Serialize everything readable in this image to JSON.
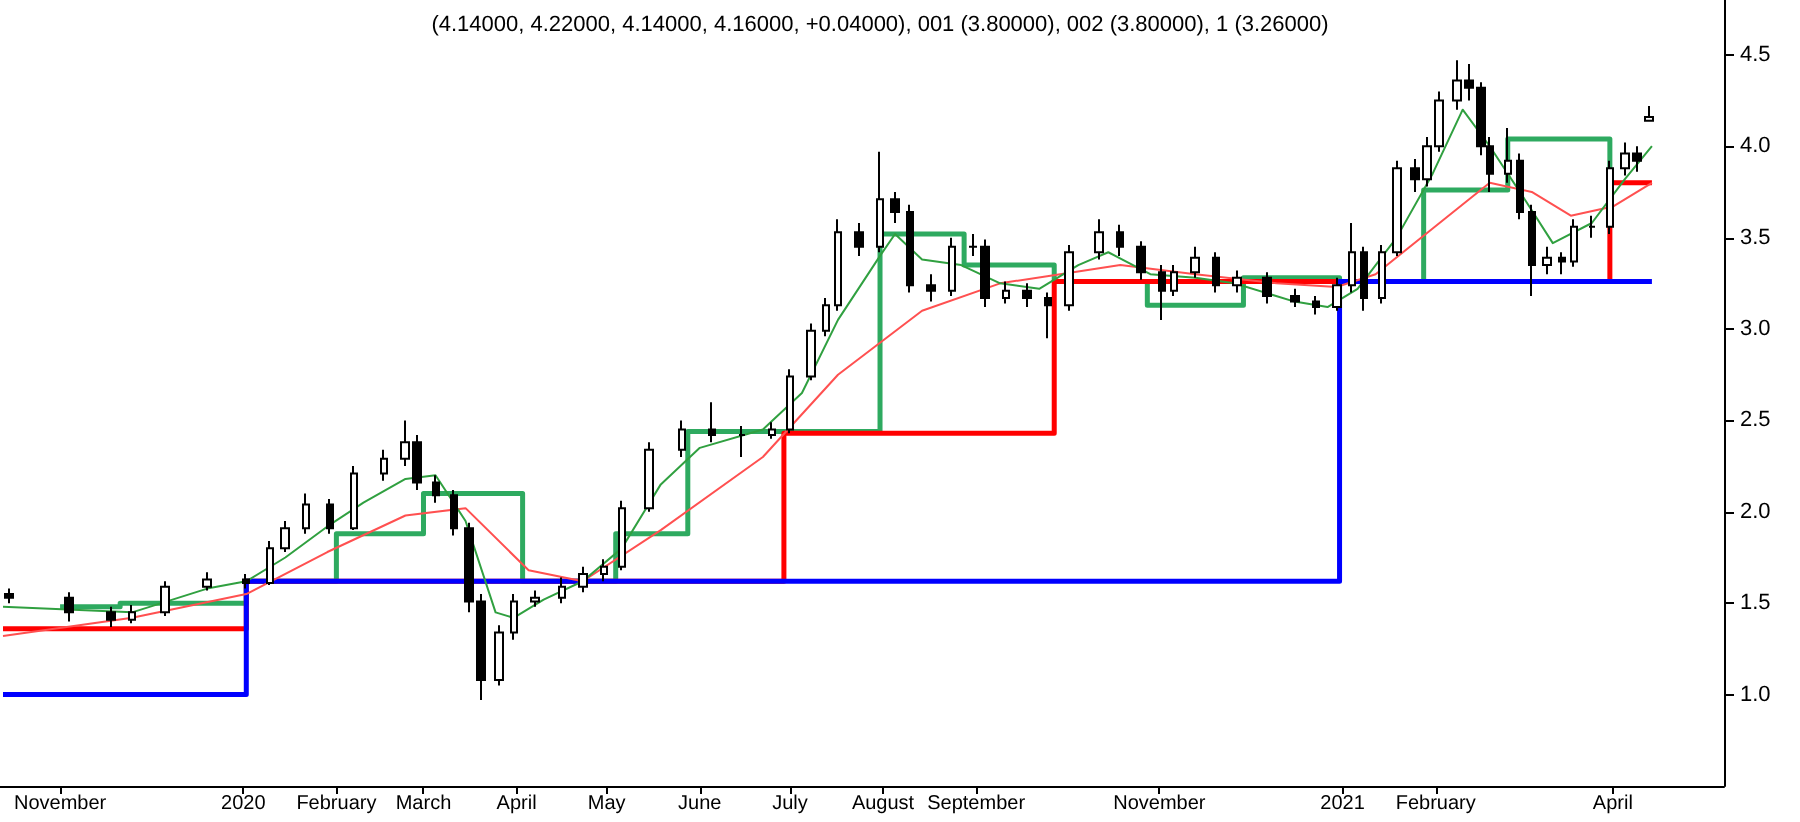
{
  "chart_data": {
    "type": "candlestick",
    "title": "(4.14000, 4.22000, 4.14000, 4.16000, +0.04000), 001 (3.80000), 002 (3.80000), 1 (3.26000)",
    "xlim": [
      "2019-10-12",
      "2021-05-08"
    ],
    "xticks": [
      {
        "value": "2019-11-01",
        "label": "November"
      },
      {
        "value": "2020-01-01",
        "label": "2020"
      },
      {
        "value": "2020-02-01",
        "label": "February"
      },
      {
        "value": "2020-03-01",
        "label": "March"
      },
      {
        "value": "2020-04-01",
        "label": "April"
      },
      {
        "value": "2020-05-01",
        "label": "May"
      },
      {
        "value": "2020-06-01",
        "label": "June"
      },
      {
        "value": "2020-07-01",
        "label": "July"
      },
      {
        "value": "2020-08-01",
        "label": "August"
      },
      {
        "value": "2020-09-01",
        "label": "September"
      },
      {
        "value": "2020-11-01",
        "label": "November"
      },
      {
        "value": "2021-01-01",
        "label": "2021"
      },
      {
        "value": "2021-02-01",
        "label": "February"
      },
      {
        "value": "2021-04-01",
        "label": "April"
      }
    ],
    "ylim": [
      0.5,
      4.8
    ],
    "yticks": [
      {
        "value": 1,
        "label": "1.0"
      },
      {
        "value": 1.5,
        "label": "1.5"
      },
      {
        "value": 2,
        "label": "2.0"
      },
      {
        "value": 2.5,
        "label": "2.5"
      },
      {
        "value": 3,
        "label": "3.0"
      },
      {
        "value": 3.5,
        "label": "3.5"
      },
      {
        "value": 4,
        "label": "4.0"
      },
      {
        "value": 4.5,
        "label": "4.5"
      }
    ],
    "grid": false,
    "marker": "none",
    "series": [
      {
        "type": "step",
        "color": "#0000ff",
        "x": [
          "2019-10-13",
          "2020-01-02",
          "2020-12-31",
          "2021-04-14"
        ],
        "values": [
          1.0,
          1.62,
          3.26,
          3.26
        ]
      },
      {
        "type": "step",
        "color": "#ff0000",
        "x": [
          "2019-10-13",
          "2020-01-02",
          "2020-06-29",
          "2020-09-27",
          "2021-03-31",
          "2021-04-14"
        ],
        "values": [
          1.36,
          1.62,
          2.43,
          3.26,
          3.8,
          3.8
        ]
      },
      {
        "type": "step",
        "color": "#2eaa60",
        "x": [
          "2019-11-01",
          "2019-11-21",
          "2020-01-02",
          "2020-02-01",
          "2020-03-01",
          "2020-04-03",
          "2020-05-04",
          "2020-05-28",
          "2020-07-31",
          "2020-08-28",
          "2020-09-27",
          "2020-10-28",
          "2020-11-29",
          "2020-12-31",
          "2021-01-28",
          "2021-02-25",
          "2021-03-31"
        ],
        "values": [
          1.48,
          1.5,
          1.62,
          1.88,
          2.1,
          1.62,
          1.88,
          2.44,
          3.52,
          3.35,
          3.26,
          3.13,
          3.28,
          3.26,
          3.76,
          4.04,
          3.8
        ]
      },
      {
        "type": "line",
        "color": "#ff5050",
        "x": [
          "2019-10-13",
          "2019-11-25",
          "2020-01-02",
          "2020-01-29",
          "2020-02-24",
          "2020-03-15",
          "2020-04-05",
          "2020-04-23",
          "2020-05-19",
          "2020-06-22",
          "2020-07-17",
          "2020-08-14",
          "2020-09-09",
          "2020-09-29",
          "2020-10-19",
          "2020-11-13",
          "2020-12-10",
          "2020-12-30",
          "2021-01-12",
          "2021-01-31",
          "2021-02-19",
          "2021-03-05",
          "2021-03-18",
          "2021-04-01",
          "2021-04-14"
        ],
        "values": [
          1.32,
          1.42,
          1.55,
          1.78,
          1.98,
          2.02,
          1.68,
          1.62,
          1.9,
          2.3,
          2.75,
          3.1,
          3.25,
          3.3,
          3.35,
          3.3,
          3.25,
          3.23,
          3.3,
          3.55,
          3.8,
          3.75,
          3.62,
          3.67,
          3.8
        ]
      },
      {
        "type": "line",
        "color": "#30a040",
        "x": [
          "2019-10-13",
          "2019-11-25",
          "2019-12-20",
          "2020-01-02",
          "2020-01-15",
          "2020-01-29",
          "2020-02-10",
          "2020-02-24",
          "2020-03-05",
          "2020-03-15",
          "2020-03-25",
          "2020-03-31",
          "2020-04-10",
          "2020-04-23",
          "2020-05-06",
          "2020-05-19",
          "2020-06-01",
          "2020-06-22",
          "2020-07-05",
          "2020-07-17",
          "2020-07-31",
          "2020-08-05",
          "2020-08-14",
          "2020-08-27",
          "2020-09-09",
          "2020-09-22",
          "2020-10-05",
          "2020-10-15",
          "2020-10-29",
          "2020-11-13",
          "2020-11-26",
          "2020-12-16",
          "2020-12-27",
          "2021-01-06",
          "2021-01-19",
          "2021-01-31",
          "2021-02-10",
          "2021-02-19",
          "2021-03-03",
          "2021-03-12",
          "2021-03-25",
          "2021-04-05",
          "2021-04-14"
        ],
        "values": [
          1.48,
          1.45,
          1.58,
          1.62,
          1.75,
          1.92,
          2.05,
          2.18,
          2.2,
          1.95,
          1.45,
          1.42,
          1.52,
          1.62,
          1.8,
          2.15,
          2.35,
          2.45,
          2.65,
          3.05,
          3.4,
          3.52,
          3.38,
          3.35,
          3.25,
          3.22,
          3.35,
          3.42,
          3.3,
          3.28,
          3.25,
          3.15,
          3.12,
          3.22,
          3.5,
          3.85,
          4.2,
          4.0,
          3.7,
          3.47,
          3.58,
          3.82,
          4.0
        ]
      },
      {
        "color": "#000000",
        "x": [
          "2019-10-15",
          "2019-11-04",
          "2019-11-18",
          "2019-11-25",
          "2019-12-06",
          "2019-12-20",
          "2020-01-02",
          "2020-01-10",
          "2020-01-15",
          "2020-01-22",
          "2020-01-30",
          "2020-02-07",
          "2020-02-17",
          "2020-02-24",
          "2020-02-28",
          "2020-03-05",
          "2020-03-11",
          "2020-03-16",
          "2020-03-20",
          "2020-03-26",
          "2020-03-31",
          "2020-04-07",
          "2020-04-16",
          "2020-04-23",
          "2020-04-30",
          "2020-05-06",
          "2020-05-15",
          "2020-05-26",
          "2020-06-05",
          "2020-06-15",
          "2020-06-25",
          "2020-07-01",
          "2020-07-08",
          "2020-07-13",
          "2020-07-17",
          "2020-07-24",
          "2020-07-31",
          "2020-08-05",
          "2020-08-10",
          "2020-08-17",
          "2020-08-24",
          "2020-08-31",
          "2020-09-04",
          "2020-09-11",
          "2020-09-18",
          "2020-09-25",
          "2020-10-02",
          "2020-10-12",
          "2020-10-19",
          "2020-10-26",
          "2020-11-02",
          "2020-11-06",
          "2020-11-13",
          "2020-11-20",
          "2020-11-27",
          "2020-12-07",
          "2020-12-16",
          "2020-12-23",
          "2020-12-30",
          "2021-01-04",
          "2021-01-08",
          "2021-01-14",
          "2021-01-19",
          "2021-01-25",
          "2021-01-29",
          "2021-02-02",
          "2021-02-08",
          "2021-02-12",
          "2021-02-16",
          "2021-02-19",
          "2021-02-25",
          "2021-03-01",
          "2021-03-05",
          "2021-03-10",
          "2021-03-15",
          "2021-03-19",
          "2021-03-25",
          "2021-03-31",
          "2021-04-05",
          "2021-04-09",
          "2021-04-13"
        ],
        "ohlc": [
          [
            1.55,
            1.58,
            1.5,
            1.53
          ],
          [
            1.53,
            1.56,
            1.4,
            1.45
          ],
          [
            1.45,
            1.48,
            1.37,
            1.41
          ],
          [
            1.41,
            1.49,
            1.39,
            1.45
          ],
          [
            1.45,
            1.62,
            1.43,
            1.59
          ],
          [
            1.59,
            1.67,
            1.57,
            1.63
          ],
          [
            1.63,
            1.66,
            1.58,
            1.61
          ],
          [
            1.61,
            1.84,
            1.6,
            1.8
          ],
          [
            1.8,
            1.95,
            1.78,
            1.91
          ],
          [
            1.91,
            2.1,
            1.88,
            2.04
          ],
          [
            2.04,
            2.07,
            1.88,
            1.91
          ],
          [
            1.91,
            2.25,
            1.9,
            2.21
          ],
          [
            2.21,
            2.34,
            2.17,
            2.29
          ],
          [
            2.29,
            2.5,
            2.25,
            2.38
          ],
          [
            2.38,
            2.42,
            2.12,
            2.16
          ],
          [
            2.16,
            2.2,
            2.05,
            2.09
          ],
          [
            2.09,
            2.12,
            1.87,
            1.91
          ],
          [
            1.91,
            1.94,
            1.45,
            1.51
          ],
          [
            1.51,
            1.55,
            0.97,
            1.08
          ],
          [
            1.08,
            1.38,
            1.05,
            1.34
          ],
          [
            1.34,
            1.55,
            1.3,
            1.51
          ],
          [
            1.51,
            1.57,
            1.48,
            1.53
          ],
          [
            1.53,
            1.64,
            1.5,
            1.59
          ],
          [
            1.59,
            1.7,
            1.56,
            1.66
          ],
          [
            1.66,
            1.74,
            1.62,
            1.7
          ],
          [
            1.7,
            2.06,
            1.68,
            2.02
          ],
          [
            2.02,
            2.38,
            2.0,
            2.34
          ],
          [
            2.34,
            2.5,
            2.3,
            2.45
          ],
          [
            2.45,
            2.6,
            2.38,
            2.42
          ],
          [
            2.42,
            2.47,
            2.3,
            2.42
          ],
          [
            2.42,
            2.49,
            2.4,
            2.45
          ],
          [
            2.45,
            2.78,
            2.43,
            2.74
          ],
          [
            2.74,
            3.03,
            2.72,
            2.99
          ],
          [
            2.99,
            3.17,
            2.96,
            3.13
          ],
          [
            3.13,
            3.6,
            3.1,
            3.53
          ],
          [
            3.53,
            3.58,
            3.4,
            3.45
          ],
          [
            3.45,
            3.97,
            3.42,
            3.71
          ],
          [
            3.71,
            3.75,
            3.58,
            3.64
          ],
          [
            3.64,
            3.68,
            3.2,
            3.24
          ],
          [
            3.24,
            3.3,
            3.15,
            3.21
          ],
          [
            3.21,
            3.5,
            3.18,
            3.45
          ],
          [
            3.45,
            3.52,
            3.4,
            3.45
          ],
          [
            3.45,
            3.49,
            3.12,
            3.17
          ],
          [
            3.17,
            3.26,
            3.14,
            3.21
          ],
          [
            3.21,
            3.25,
            3.12,
            3.17
          ],
          [
            3.17,
            3.2,
            2.95,
            3.13
          ],
          [
            3.13,
            3.46,
            3.1,
            3.42
          ],
          [
            3.42,
            3.6,
            3.38,
            3.53
          ],
          [
            3.53,
            3.57,
            3.4,
            3.45
          ],
          [
            3.45,
            3.48,
            3.27,
            3.31
          ],
          [
            3.31,
            3.35,
            3.05,
            3.21
          ],
          [
            3.21,
            3.35,
            3.18,
            3.31
          ],
          [
            3.31,
            3.45,
            3.28,
            3.39
          ],
          [
            3.39,
            3.42,
            3.2,
            3.24
          ],
          [
            3.24,
            3.32,
            3.2,
            3.28
          ],
          [
            3.28,
            3.31,
            3.14,
            3.18
          ],
          [
            3.18,
            3.22,
            3.12,
            3.15
          ],
          [
            3.15,
            3.18,
            3.08,
            3.12
          ],
          [
            3.12,
            3.28,
            3.1,
            3.24
          ],
          [
            3.24,
            3.58,
            3.2,
            3.42
          ],
          [
            3.42,
            3.45,
            3.1,
            3.17
          ],
          [
            3.17,
            3.46,
            3.14,
            3.42
          ],
          [
            3.42,
            3.92,
            3.4,
            3.88
          ],
          [
            3.88,
            3.93,
            3.75,
            3.82
          ],
          [
            3.82,
            4.05,
            3.78,
            4.0
          ],
          [
            4.0,
            4.3,
            3.97,
            4.25
          ],
          [
            4.25,
            4.47,
            4.2,
            4.36
          ],
          [
            4.36,
            4.45,
            4.25,
            4.32
          ],
          [
            4.32,
            4.35,
            3.95,
            4.0
          ],
          [
            4.0,
            4.05,
            3.75,
            3.85
          ],
          [
            3.85,
            4.1,
            3.8,
            3.92
          ],
          [
            3.92,
            3.96,
            3.6,
            3.64
          ],
          [
            3.64,
            3.68,
            3.18,
            3.35
          ],
          [
            3.35,
            3.45,
            3.3,
            3.39
          ],
          [
            3.39,
            3.42,
            3.3,
            3.37
          ],
          [
            3.37,
            3.6,
            3.34,
            3.56
          ],
          [
            3.56,
            3.62,
            3.5,
            3.56
          ],
          [
            3.56,
            3.92,
            3.52,
            3.88
          ],
          [
            3.88,
            4.02,
            3.84,
            3.96
          ],
          [
            3.96,
            4.0,
            3.86,
            3.92
          ],
          [
            4.14,
            4.22,
            4.14,
            4.16
          ]
        ]
      }
    ]
  }
}
